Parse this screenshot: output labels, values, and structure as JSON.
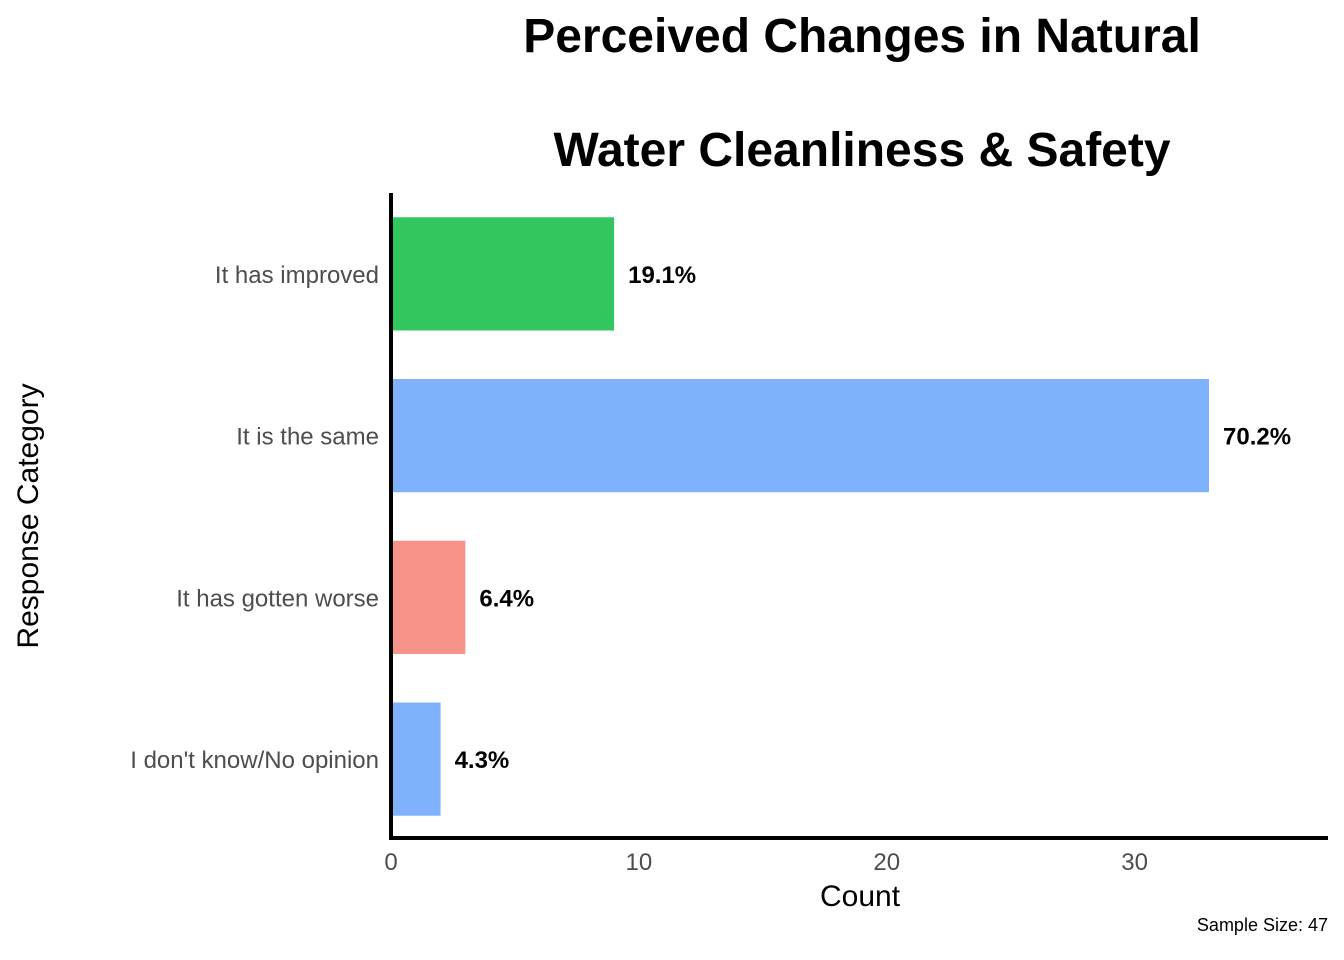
{
  "chart_data": {
    "type": "bar",
    "orientation": "horizontal",
    "title_lines": [
      "Perceived Changes in Natural",
      "Water Cleanliness & Safety"
    ],
    "xlabel": "Count",
    "ylabel": "Response Category",
    "categories": [
      "It has improved",
      "It is the same",
      "It has gotten worse",
      "I don't know/No opinion"
    ],
    "values": [
      9,
      33,
      3,
      2
    ],
    "labels": [
      "19.1%",
      "70.2%",
      "6.4%",
      "4.3%"
    ],
    "colors": [
      "#33c65f",
      "#80b1fc",
      "#f8938a",
      "#80b1fc"
    ],
    "xlim": [
      0,
      37.8
    ],
    "xticks": [
      0,
      10,
      20,
      30
    ],
    "grid": false,
    "legend": "none",
    "caption": "Sample Size: 47"
  }
}
